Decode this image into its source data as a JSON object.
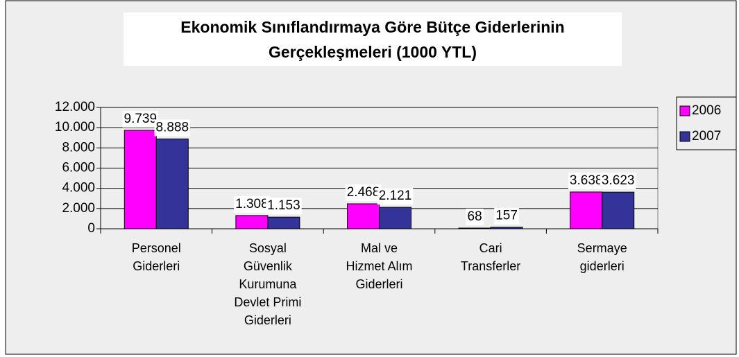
{
  "chart_data": {
    "type": "bar",
    "title": "Ekonomik Sınıflandırmaya Göre Bütçe Giderlerinin Gerçekleşmeleri (1000 YTL)",
    "categories": [
      "Personel Giderleri",
      "Sosyal Güvenlik Kurumuna Devlet Primi Giderleri",
      "Mal ve Hizmet Alım Giderleri",
      "Cari Transferler",
      "Sermaye giderleri"
    ],
    "series": [
      {
        "name": "2006",
        "color": "#ff00ff",
        "values": [
          9739,
          1308,
          2468,
          68,
          3638
        ],
        "value_labels": [
          "9.739",
          "1.308",
          "2.468",
          "68",
          "3.638"
        ]
      },
      {
        "name": "2007",
        "color": "#333399",
        "values": [
          8888,
          1153,
          2121,
          157,
          3623
        ],
        "value_labels": [
          "8.888",
          "1.153",
          "2.121",
          "157",
          "3.623"
        ]
      }
    ],
    "ylim": [
      0,
      12000
    ],
    "yticks": [
      0,
      {
        "value": 2000,
        "label": "2.000"
      },
      {
        "value": 4000,
        "label": "4.000"
      },
      {
        "value": 6000,
        "label": "6.000"
      },
      {
        "value": 8000,
        "label": "8.000"
      },
      {
        "value": 10000,
        "label": "10.000"
      },
      {
        "value": 12000,
        "label": "12.000"
      }
    ],
    "grid": true,
    "legend": "right"
  }
}
